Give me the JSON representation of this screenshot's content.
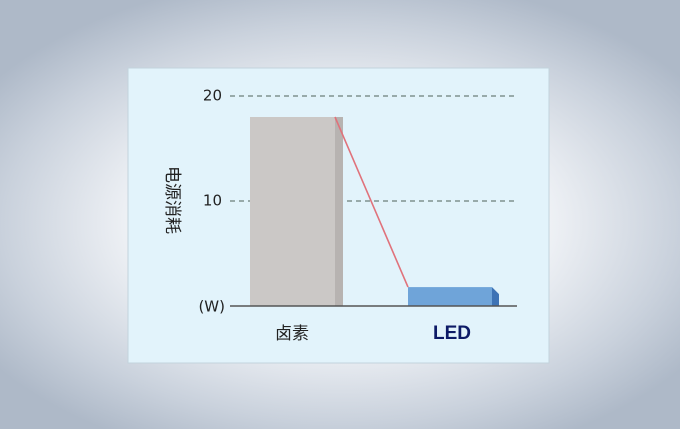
{
  "chart_data": {
    "type": "bar",
    "categories": [
      "卤素",
      "LED"
    ],
    "values": [
      18,
      1.8
    ],
    "ylabel": "电源消耗",
    "unit": "(W)",
    "yticks": [
      10,
      20
    ],
    "ylim": [
      0,
      20
    ],
    "grid": true,
    "colors": {
      "halogen": "#cbc8c6",
      "halogen_side": "#b7b3b1",
      "led": "#6fa4d9",
      "led_side": "#3e73b5",
      "trend": "#e0727b",
      "panel": "#e2f3fb"
    }
  }
}
